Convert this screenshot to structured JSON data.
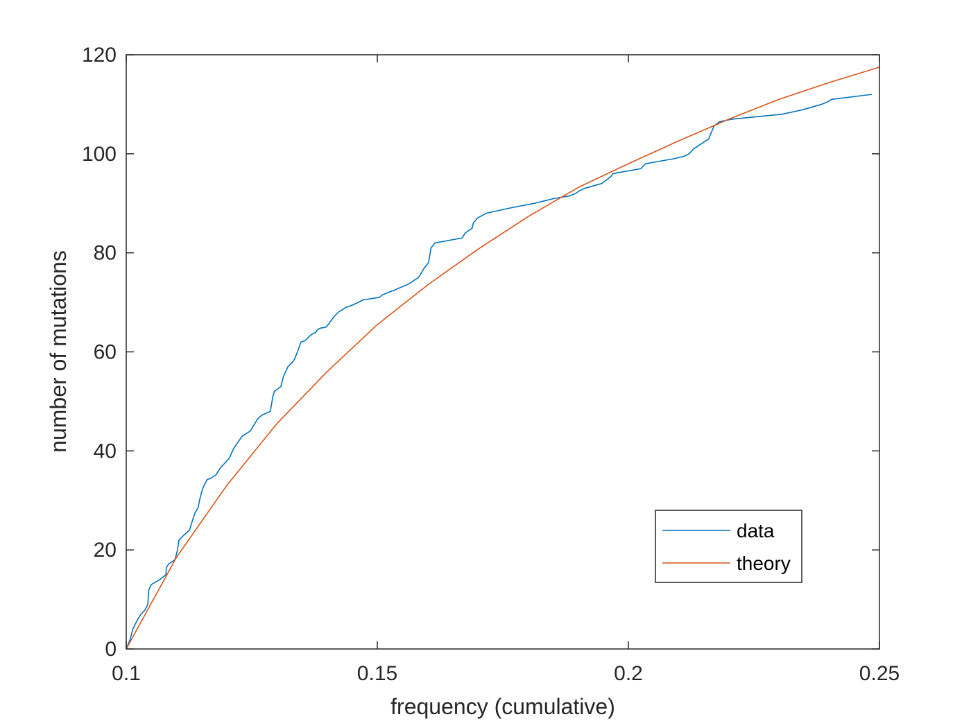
{
  "chart_data": {
    "type": "line",
    "title": "",
    "xlabel": "frequency (cumulative)",
    "ylabel": "number of mutations",
    "xlim": [
      0.1,
      0.25
    ],
    "ylim": [
      0,
      120
    ],
    "xticks": [
      0.1,
      0.15,
      0.2,
      0.25
    ],
    "xtick_labels": [
      "0.1",
      "0.15",
      "0.2",
      "0.25"
    ],
    "yticks": [
      0,
      20,
      40,
      60,
      80,
      100,
      120
    ],
    "ytick_labels": [
      "0",
      "20",
      "40",
      "60",
      "80",
      "100",
      "120"
    ],
    "grid": false,
    "legend_placement": "bottom-right",
    "series": [
      {
        "name": "data",
        "color": "#0072BD",
        "x": [
          0.1,
          0.1008,
          0.1013,
          0.1018,
          0.1023,
          0.1029,
          0.1034,
          0.1038,
          0.1043,
          0.1045,
          0.105,
          0.1058,
          0.1067,
          0.1079,
          0.108,
          0.1085,
          0.1097,
          0.1102,
          0.1105,
          0.111,
          0.1115,
          0.1126,
          0.1132,
          0.1137,
          0.1143,
          0.1146,
          0.1151,
          0.1155,
          0.1161,
          0.1169,
          0.1179,
          0.1187,
          0.1196,
          0.1205,
          0.1214,
          0.1231,
          0.1247,
          0.1253,
          0.1262,
          0.127,
          0.1287,
          0.1292,
          0.1295,
          0.1308,
          0.1313,
          0.1322,
          0.133,
          0.1335,
          0.1341,
          0.1348,
          0.1355,
          0.1359,
          0.1363,
          0.1369,
          0.1378,
          0.1381,
          0.1387,
          0.1398,
          0.1402,
          0.1413,
          0.1422,
          0.1438,
          0.1452,
          0.1472,
          0.1504,
          0.151,
          0.1522,
          0.1535,
          0.1546,
          0.1558,
          0.1567,
          0.1574,
          0.1582,
          0.1594,
          0.1602,
          0.1607,
          0.1615,
          0.1669,
          0.1675,
          0.1682,
          0.1689,
          0.1691,
          0.1699,
          0.1717,
          0.1762,
          0.1813,
          0.1833,
          0.1853,
          0.1883,
          0.1895,
          0.1902,
          0.1912,
          0.1947,
          0.196,
          0.1966,
          0.1969,
          0.2025,
          0.2034,
          0.209,
          0.2111,
          0.2121,
          0.213,
          0.2145,
          0.216,
          0.2166,
          0.217,
          0.2175,
          0.2182,
          0.2207,
          0.2307,
          0.2351,
          0.2385,
          0.2397,
          0.2405,
          0.2485
        ],
        "y": [
          0,
          2,
          4,
          5,
          6,
          7,
          7.5,
          8,
          9,
          12,
          13,
          13.5,
          14,
          15,
          16.5,
          17.2,
          18,
          20,
          22,
          22.5,
          23,
          24,
          26,
          27.5,
          28.5,
          30,
          32,
          33,
          34.2,
          34.5,
          35.2,
          36.5,
          37.5,
          38.5,
          40.5,
          43,
          44,
          45,
          46.5,
          47.2,
          48,
          51,
          52,
          53,
          55,
          57,
          57.8,
          58.5,
          60,
          62,
          62.2,
          62.5,
          63,
          63.5,
          64,
          64.5,
          64.8,
          65,
          65.5,
          67,
          68,
          69,
          69.5,
          70.5,
          71,
          71.5,
          72,
          72.5,
          73,
          73.5,
          74,
          74.5,
          75,
          77,
          78,
          81,
          82,
          83,
          84,
          84.5,
          85,
          86,
          87,
          88,
          89,
          90,
          90.5,
          91,
          91.5,
          92,
          92.5,
          93,
          94,
          95,
          95.5,
          96,
          97,
          98,
          99,
          99.5,
          100,
          101,
          102,
          103,
          104.5,
          105.5,
          106,
          106.5,
          107,
          108,
          109,
          110,
          110.5,
          111,
          112
        ]
      },
      {
        "name": "theory",
        "color": "#D95319",
        "x": [
          0.1,
          0.11,
          0.12,
          0.13,
          0.14,
          0.15,
          0.16,
          0.17,
          0.18,
          0.19,
          0.2,
          0.21,
          0.22,
          0.23,
          0.24,
          0.25
        ],
        "y": [
          0,
          18.5,
          33,
          45.5,
          56,
          65.5,
          73.5,
          80.7,
          87.3,
          93.2,
          98,
          102.6,
          107,
          111,
          114.4,
          117.5
        ]
      }
    ]
  }
}
